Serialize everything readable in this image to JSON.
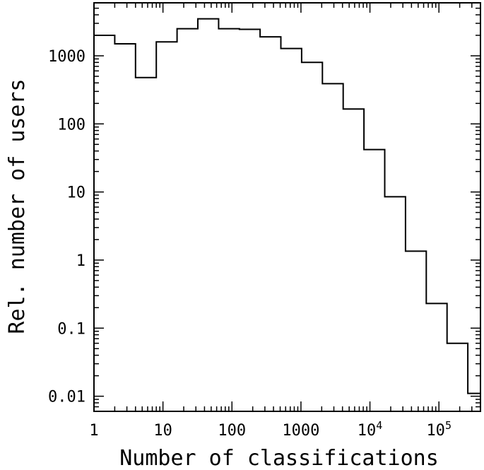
{
  "chart_data": {
    "type": "line",
    "style": "step-histogram",
    "xlabel": "Number of classifications",
    "ylabel": "Rel. number of users",
    "xscale": "log",
    "yscale": "log",
    "xlim": [
      1,
      400000
    ],
    "ylim": [
      0.006,
      6000
    ],
    "grid": false,
    "legend": "none",
    "color": "#000000",
    "x_ticks": [
      {
        "value": 1,
        "label": "1"
      },
      {
        "value": 10,
        "label": "10"
      },
      {
        "value": 100,
        "label": "100"
      },
      {
        "value": 1000,
        "label": "1000"
      },
      {
        "value": 10000,
        "label": "10",
        "exp": "4"
      },
      {
        "value": 100000,
        "label": "10",
        "exp": "5"
      }
    ],
    "y_ticks": [
      {
        "value": 0.01,
        "label": "0.01"
      },
      {
        "value": 0.1,
        "label": "0.1"
      },
      {
        "value": 1,
        "label": "1"
      },
      {
        "value": 10,
        "label": "10"
      },
      {
        "value": 100,
        "label": "100"
      },
      {
        "value": 1000,
        "label": "1000"
      }
    ],
    "bin_edges": [
      1,
      2,
      4,
      8,
      16,
      32,
      64,
      128,
      256,
      512,
      1024,
      2048,
      4096,
      8192,
      16384,
      32768,
      65536,
      131072,
      262144,
      400000
    ],
    "values": [
      2000,
      1500,
      480,
      1600,
      2500,
      3500,
      2500,
      2450,
      1900,
      1280,
      800,
      390,
      165,
      42,
      8.5,
      1.35,
      0.23,
      0.06,
      0.011
    ]
  }
}
